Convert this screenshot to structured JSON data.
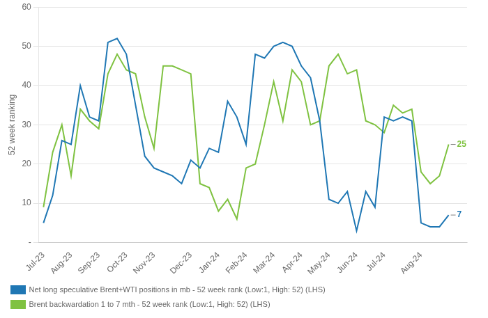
{
  "chart_data": {
    "type": "line",
    "ylabel": "52 week ranking",
    "x": [
      0,
      1,
      2,
      3,
      4,
      5,
      6,
      7,
      8,
      9,
      10,
      11,
      12,
      13,
      14,
      15,
      16,
      17,
      18,
      19,
      20,
      21,
      22,
      23,
      24,
      25,
      26,
      27,
      28,
      29,
      30,
      31,
      32,
      33,
      34,
      35,
      36,
      37,
      38,
      39,
      40,
      41,
      42,
      43,
      44
    ],
    "series": [
      {
        "name": "Net long speculative Brent+WTI positions in mb - 52 week rank (Low:1, High: 52) (LHS)",
        "color": "#1F77B4",
        "values": [
          5,
          12,
          26,
          25,
          40,
          32,
          31,
          51,
          52,
          48,
          35,
          22,
          19,
          18,
          17,
          15,
          21,
          19,
          24,
          23,
          36,
          32,
          25,
          48,
          47,
          50,
          51,
          50,
          45,
          42,
          31,
          11,
          10,
          13,
          3,
          13,
          9,
          32,
          31,
          32,
          31,
          5,
          4,
          4,
          7
        ]
      },
      {
        "name": "Brent backwardation 1 to 7 mth - 52 week rank (Low:1, High: 52) (LHS)",
        "color": "#7FC241",
        "values": [
          9,
          23,
          30,
          17,
          34,
          31,
          29,
          43,
          48,
          44,
          43,
          32,
          24,
          45,
          45,
          44,
          43,
          15,
          14,
          8,
          11,
          6,
          19,
          20,
          30,
          41,
          31,
          44,
          41,
          30,
          31,
          45,
          48,
          43,
          44,
          31,
          30,
          28,
          35,
          33,
          34,
          18,
          15,
          17,
          25
        ]
      }
    ],
    "xlim": [
      -0.5,
      46
    ],
    "xticks": [
      {
        "value": 0,
        "label": "Jul-23"
      },
      {
        "value": 3,
        "label": "Aug-23"
      },
      {
        "value": 6,
        "label": "Sep-23"
      },
      {
        "value": 9,
        "label": "Oct-23"
      },
      {
        "value": 12,
        "label": "Nov-23"
      },
      {
        "value": 16,
        "label": "Dec-23"
      },
      {
        "value": 19,
        "label": "Jan-24"
      },
      {
        "value": 22,
        "label": "Feb-24"
      },
      {
        "value": 25,
        "label": "Mar-24"
      },
      {
        "value": 28,
        "label": "Apr-24"
      },
      {
        "value": 31,
        "label": "May-24"
      },
      {
        "value": 34,
        "label": "Jun-24"
      },
      {
        "value": 37,
        "label": "Jul-24"
      },
      {
        "value": 41,
        "label": "Aug-24"
      }
    ],
    "ylim": [
      0,
      60
    ],
    "yticks": [
      {
        "value": 0,
        "label": "-"
      },
      10,
      20,
      30,
      40,
      50,
      60
    ],
    "grid": "y",
    "legend": "bottom",
    "annotations": [
      {
        "text": "7",
        "x": 44,
        "y": 7,
        "color": "#1F77B4"
      },
      {
        "text": "25",
        "x": 44,
        "y": 25,
        "color": "#7FC241"
      }
    ]
  }
}
